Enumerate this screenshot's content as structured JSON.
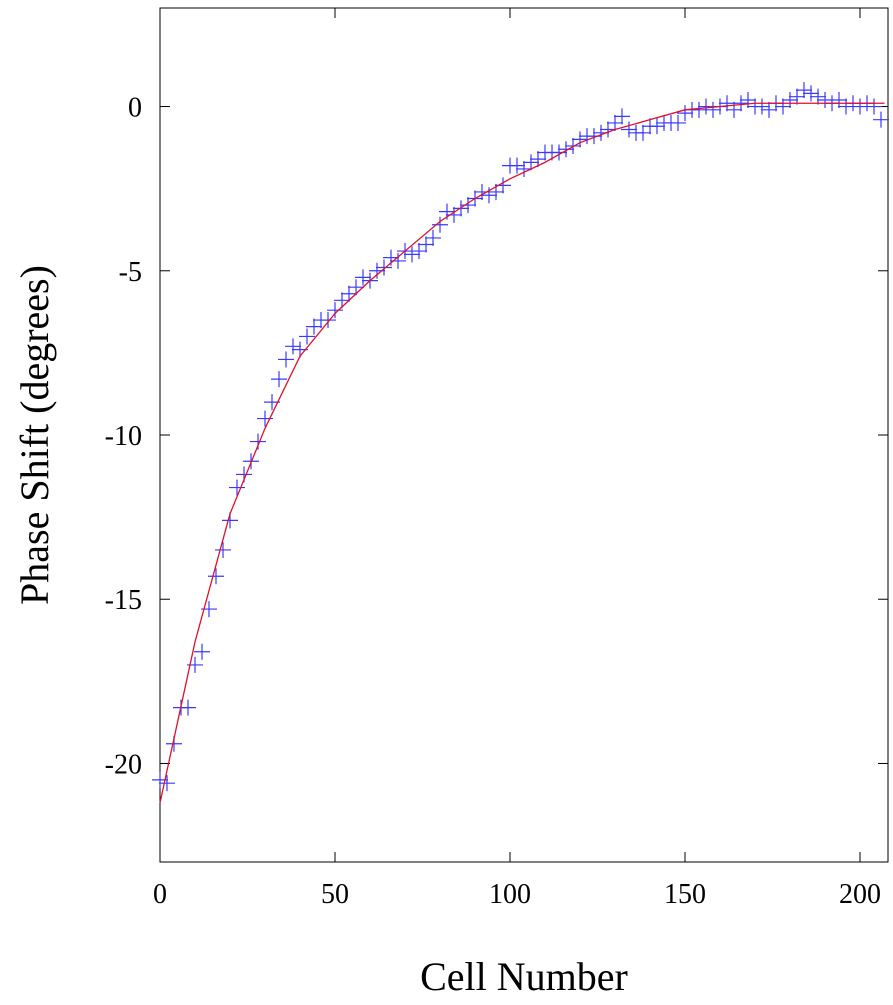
{
  "chart_data": {
    "type": "scatter",
    "xlabel": "Cell Number",
    "ylabel": "Phase Shift (degrees)",
    "xlim": [
      0,
      208
    ],
    "ylim": [
      -23,
      3
    ],
    "xticks": [
      0,
      50,
      100,
      150,
      200
    ],
    "yticks": [
      -20,
      -15,
      -10,
      -5,
      0
    ],
    "series": [
      {
        "color": "#3a3aff",
        "marker": "+",
        "x": [
          0,
          2,
          4,
          6,
          8,
          10,
          12,
          14,
          16,
          18,
          20,
          22,
          24,
          26,
          28,
          30,
          32,
          34,
          36,
          38,
          40,
          42,
          44,
          46,
          48,
          50,
          52,
          54,
          56,
          58,
          60,
          62,
          64,
          66,
          68,
          70,
          72,
          74,
          76,
          78,
          80,
          82,
          84,
          86,
          88,
          90,
          92,
          94,
          96,
          98,
          100,
          102,
          104,
          106,
          108,
          110,
          112,
          114,
          116,
          118,
          120,
          122,
          124,
          126,
          128,
          130,
          132,
          134,
          136,
          138,
          140,
          142,
          144,
          146,
          148,
          150,
          152,
          154,
          156,
          158,
          160,
          162,
          164,
          166,
          168,
          170,
          172,
          174,
          176,
          178,
          180,
          182,
          184,
          186,
          188,
          190,
          192,
          194,
          196,
          198,
          200,
          202,
          204,
          206
        ],
        "values": [
          -20.5,
          -20.6,
          -19.4,
          -18.3,
          -18.3,
          -17.0,
          -16.6,
          -15.3,
          -14.3,
          -13.5,
          -12.6,
          -11.6,
          -11.2,
          -10.8,
          -10.2,
          -9.5,
          -9.0,
          -8.3,
          -7.7,
          -7.3,
          -7.4,
          -7.0,
          -6.7,
          -6.5,
          -6.5,
          -6.2,
          -5.9,
          -5.7,
          -5.5,
          -5.2,
          -5.3,
          -5.0,
          -4.9,
          -4.6,
          -4.7,
          -4.4,
          -4.5,
          -4.4,
          -4.2,
          -4.0,
          -3.6,
          -3.2,
          -3.3,
          -3.1,
          -3.0,
          -2.8,
          -2.6,
          -2.7,
          -2.6,
          -2.4,
          -1.8,
          -1.8,
          -1.9,
          -1.7,
          -1.6,
          -1.4,
          -1.4,
          -1.4,
          -1.3,
          -1.2,
          -1.0,
          -0.9,
          -0.9,
          -0.8,
          -0.7,
          -0.5,
          -0.3,
          -0.7,
          -0.8,
          -0.8,
          -0.6,
          -0.6,
          -0.5,
          -0.5,
          -0.5,
          -0.2,
          -0.1,
          -0.1,
          0.0,
          -0.1,
          0.0,
          0.1,
          -0.1,
          0.1,
          0.2,
          0.0,
          0.0,
          -0.1,
          0.1,
          0.0,
          0.2,
          0.3,
          0.5,
          0.4,
          0.3,
          0.2,
          0.1,
          0.2,
          0.0,
          0.1,
          0.0,
          0.1,
          0.0,
          -0.4
        ]
      },
      {
        "color": "#e0102a",
        "marker": "line",
        "x": [
          0,
          10,
          20,
          30,
          40,
          50,
          60,
          70,
          80,
          90,
          100,
          110,
          120,
          130,
          140,
          150,
          160,
          170,
          180,
          190,
          200,
          207
        ],
        "values": [
          -21.2,
          -16.3,
          -12.4,
          -9.8,
          -7.6,
          -6.3,
          -5.3,
          -4.4,
          -3.5,
          -2.8,
          -2.2,
          -1.7,
          -1.1,
          -0.7,
          -0.4,
          -0.1,
          0.0,
          0.1,
          0.1,
          0.1,
          0.1,
          0.1
        ]
      }
    ]
  }
}
